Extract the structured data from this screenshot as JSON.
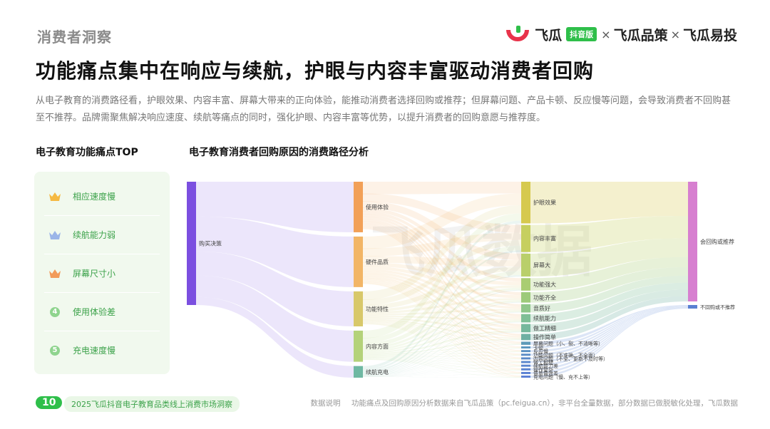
{
  "header": {
    "section_label": "消费者洞察",
    "brand": {
      "name1": "飞瓜",
      "badge": "抖音版",
      "sep1": "×",
      "name2": "飞瓜品策",
      "sep2": "×",
      "name3": "飞瓜易投"
    },
    "headline": "功能痛点集中在响应与续航，护眼与内容丰富驱动消费者回购",
    "description": "从电子教育的消费路径看，护眼效果、内容丰富、屏幕大带来的正向体验，能推动消费者选择回购或推荐；但屏幕问题、产品卡顿、反应慢等问题，会导致消费者不回购甚至不推荐。品牌需聚焦解决响应速度、续航等痛点的同时，强化护眼、内容丰富等优势，以提升消费者的回购意愿与推荐度。"
  },
  "left": {
    "title": "电子教育功能痛点TOP",
    "items": [
      {
        "rank": "1",
        "label": "相应速度慢",
        "icon": "crown-icon",
        "color": "#f5b942"
      },
      {
        "rank": "2",
        "label": "续航能力弱",
        "icon": "crown-icon",
        "color": "#9bb5e8"
      },
      {
        "rank": "3",
        "label": "屏幕尺寸小",
        "icon": "crown-icon",
        "color": "#f29b5a"
      },
      {
        "rank": "4",
        "label": "使用体验差",
        "icon": "number-badge",
        "color": "#8fd48e"
      },
      {
        "rank": "5",
        "label": "充电速度慢",
        "icon": "number-badge",
        "color": "#8fd48e"
      }
    ]
  },
  "right": {
    "title": "电子教育消费者回购原因的消费路径分析",
    "watermark": "飞瓜数据"
  },
  "chart_data": {
    "type": "sankey",
    "nodes": {
      "level1": [
        {
          "name": "购买决策",
          "color": "#7b4fe0"
        }
      ],
      "level2": [
        {
          "name": "使用体验",
          "value": 26,
          "color": "#f2a057"
        },
        {
          "name": "硬件品质",
          "value": 26,
          "color": "#f2b566"
        },
        {
          "name": "功能特性",
          "value": 18,
          "color": "#d8c86a"
        },
        {
          "name": "内容方面",
          "value": 16,
          "color": "#b4d27a"
        },
        {
          "name": "续航充电",
          "value": 6,
          "color": "#6fb8a3"
        }
      ],
      "level3": [
        {
          "name": "护眼效果",
          "value": 20,
          "color": "#d6c94e"
        },
        {
          "name": "内容丰富",
          "value": 13,
          "color": "#c6cf5f"
        },
        {
          "name": "屏幕大",
          "value": 11,
          "color": "#b9cf6a"
        },
        {
          "name": "功能强大",
          "value": 6,
          "color": "#a9cd72"
        },
        {
          "name": "功能齐全",
          "value": 5,
          "color": "#9dca7a"
        },
        {
          "name": "音质好",
          "value": 4,
          "color": "#8fc68a"
        },
        {
          "name": "续航能力",
          "value": 4,
          "color": "#7fbf96"
        },
        {
          "name": "做工精细",
          "value": 4,
          "color": "#76b89c"
        },
        {
          "name": "操作简单",
          "value": 3,
          "color": "#6fb0a3"
        },
        {
          "name": "屏幕问题（小、裂、不清晰等）",
          "value": 1.5,
          "color": "#5e9ab8"
        },
        {
          "name": "卡顿",
          "value": 1,
          "color": "#5a95be"
        },
        {
          "name": "反应慢",
          "value": 1,
          "color": "#5a90c2"
        },
        {
          "name": "功能问题（不准确、不全面）",
          "value": 1,
          "color": "#5a8cc6"
        },
        {
          "name": "内容问题（不全、更新不及时等）",
          "value": 1,
          "color": "#5a88c8"
        },
        {
          "name": "做工粗糙",
          "value": 1,
          "color": "#5a86cc"
        },
        {
          "name": "续航能力差",
          "value": 1,
          "color": "#5a84ce"
        },
        {
          "name": "操作复杂",
          "value": 1,
          "color": "#5a82d0"
        },
        {
          "name": "音质音效差",
          "value": 1,
          "color": "#5a80d2"
        },
        {
          "name": "充电问题（慢、充不上等）",
          "value": 1,
          "color": "#5a7ed4"
        }
      ],
      "level4": [
        {
          "name": "会回购或推荐",
          "value": 90,
          "color": "#d77fd0"
        },
        {
          "name": "不回购或不推荐",
          "value": 4,
          "color": "#5a80d2"
        }
      ]
    }
  },
  "footer": {
    "page": "10",
    "title": "2025飞瓜抖音电子教育品类线上消费市场洞察",
    "note_label": "数据说明",
    "note": "功能痛点及回购原因分析数据来自飞瓜品策（pc.feigua.cn），非平台全量数据，部分数据已做脱敏化处理，飞瓜数据"
  }
}
